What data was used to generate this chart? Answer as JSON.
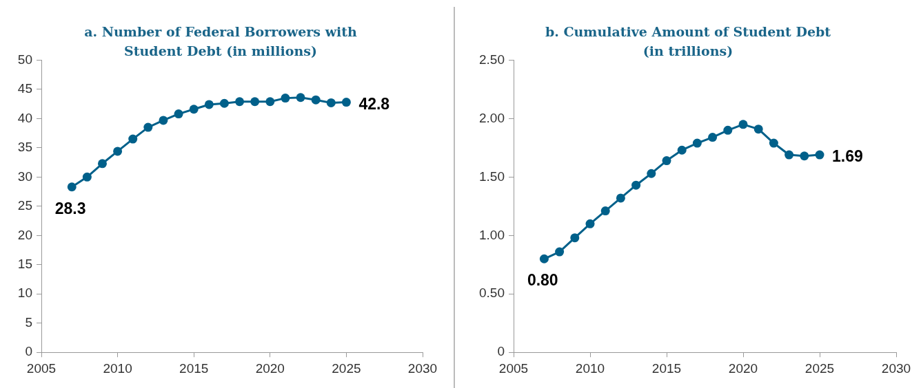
{
  "chart_data": [
    {
      "type": "line",
      "title": "a. Number of Federal Borrowers with Student Debt (in millions)",
      "x": [
        2007,
        2008,
        2009,
        2010,
        2011,
        2012,
        2013,
        2014,
        2015,
        2016,
        2017,
        2018,
        2019,
        2020,
        2021,
        2022,
        2023,
        2024,
        2025
      ],
      "series": [
        {
          "color": "#00608a",
          "values": [
            28.3,
            30.0,
            32.3,
            34.4,
            36.5,
            38.5,
            39.7,
            40.8,
            41.6,
            42.4,
            42.6,
            42.9,
            42.9,
            42.9,
            43.5,
            43.6,
            43.2,
            42.7,
            42.8
          ],
          "value_labels": [
            "28.3",
            null,
            null,
            null,
            null,
            null,
            null,
            null,
            null,
            null,
            null,
            null,
            null,
            null,
            null,
            null,
            null,
            null,
            "42.8"
          ]
        }
      ],
      "xlim": [
        2005,
        2030
      ],
      "xticks": [
        2005,
        2010,
        2015,
        2020,
        2025,
        2030
      ],
      "ylim": [
        0,
        50
      ],
      "yticks": [
        0,
        5,
        10,
        15,
        20,
        25,
        30,
        35,
        40,
        45,
        50
      ],
      "marker": "circle"
    },
    {
      "type": "line",
      "title": "b. Cumulative Amount of Student Debt (in trillions)",
      "x": [
        2007,
        2008,
        2009,
        2010,
        2011,
        2012,
        2013,
        2014,
        2015,
        2016,
        2017,
        2018,
        2019,
        2020,
        2021,
        2022,
        2023,
        2024,
        2025
      ],
      "series": [
        {
          "color": "#00608a",
          "values": [
            0.8,
            0.86,
            0.98,
            1.1,
            1.21,
            1.32,
            1.43,
            1.53,
            1.64,
            1.73,
            1.79,
            1.84,
            1.9,
            1.95,
            1.91,
            1.79,
            1.69,
            1.68,
            1.69
          ],
          "value_labels": [
            "0.80",
            null,
            null,
            null,
            null,
            null,
            null,
            null,
            null,
            null,
            null,
            null,
            null,
            null,
            null,
            null,
            null,
            null,
            "1.69"
          ]
        }
      ],
      "xlim": [
        2005,
        2030
      ],
      "xticks": [
        2005,
        2010,
        2015,
        2020,
        2025,
        2030
      ],
      "ylim": [
        0,
        2.5
      ],
      "yticks": [
        0,
        {
          "value": 0.5,
          "label": "0.50"
        },
        {
          "value": 1,
          "label": "1.00"
        },
        {
          "value": 1.5,
          "label": "1.50"
        },
        {
          "value": 2,
          "label": "2.00"
        },
        {
          "value": 2.5,
          "label": "2.50"
        }
      ],
      "marker": "circle"
    }
  ]
}
